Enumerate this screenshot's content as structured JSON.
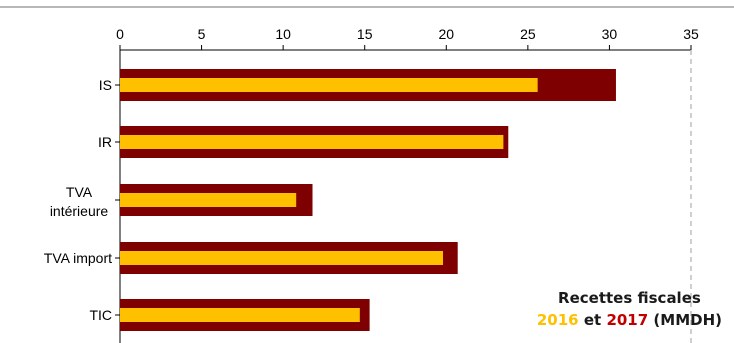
{
  "chart_data": {
    "type": "bar",
    "orientation": "horizontal",
    "title_line1": "Recettes fiscales",
    "title_line2": {
      "year1": "2016",
      "connector": "et",
      "year2": "2017",
      "unit": "(MMDH)"
    },
    "categories": [
      [
        "IS"
      ],
      [
        "IR"
      ],
      [
        "TVA",
        "intérieure"
      ],
      [
        "TVA import"
      ],
      [
        "TIC"
      ]
    ],
    "series": [
      {
        "name": "2017",
        "color": "#7f0000",
        "values": [
          30.4,
          23.8,
          11.8,
          20.7,
          15.3
        ]
      },
      {
        "name": "2016",
        "color": "#ffc000",
        "values": [
          25.6,
          23.5,
          10.8,
          19.8,
          14.7
        ]
      }
    ],
    "xticks": [
      0,
      5,
      10,
      15,
      20,
      25,
      30,
      35
    ],
    "xlim": [
      0,
      35
    ],
    "axis_position": "top",
    "grid": false
  }
}
